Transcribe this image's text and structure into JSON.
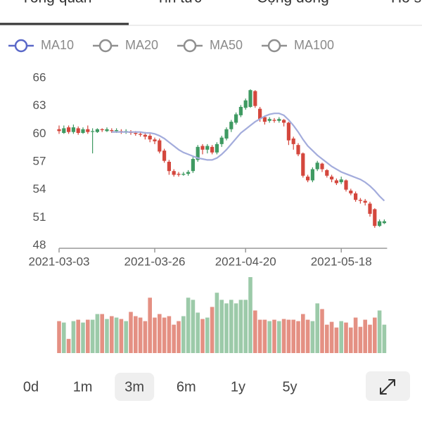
{
  "tabs": [
    "Tổng quan",
    "Tin tức",
    "Cộng đồng",
    "Hồ sơ"
  ],
  "ranges": [
    "0d",
    "1m",
    "3m",
    "6m",
    "1y",
    "5y"
  ],
  "selected_range": "3m",
  "chart_data": {
    "type": "candlestick",
    "legend": [
      {
        "name": "MA10",
        "color": "#5a68c8",
        "active": true
      },
      {
        "name": "MA20",
        "color": "#8f8f8f",
        "active": false
      },
      {
        "name": "MA50",
        "color": "#8f8f8f",
        "active": false
      },
      {
        "name": "MA100",
        "color": "#8f8f8f",
        "active": false
      }
    ],
    "categories": [
      "2021-03-03",
      null,
      null,
      null,
      null,
      null,
      null,
      null,
      null,
      null,
      null,
      null,
      null,
      null,
      null,
      null,
      null,
      null,
      null,
      null,
      "2021-03-26",
      null,
      null,
      null,
      null,
      null,
      null,
      null,
      null,
      null,
      null,
      null,
      null,
      null,
      null,
      null,
      null,
      null,
      null,
      "2021-04-20",
      null,
      null,
      null,
      null,
      null,
      null,
      null,
      null,
      null,
      null,
      null,
      null,
      null,
      null,
      null,
      null,
      null,
      null,
      null,
      "2021-05-18",
      null,
      null,
      null,
      null,
      null,
      null,
      null,
      null,
      null
    ],
    "open": [
      60.5,
      60.1,
      60.7,
      60.2,
      60.6,
      60.1,
      60.5,
      60.3,
      60.2,
      60.5,
      60.3,
      60.4,
      60.3,
      60.3,
      60.2,
      60.2,
      60.1,
      60.0,
      59.9,
      59.8,
      59.4,
      59.3,
      58.2,
      57.0,
      56.0,
      55.7,
      55.6,
      55.7,
      56.0,
      57.2,
      58.7,
      58.3,
      58.6,
      58.0,
      58.9,
      59.5,
      60.5,
      61.2,
      62.0,
      62.8,
      62.9,
      64.6,
      62.7,
      61.8,
      61.4,
      61.5,
      61.4,
      61.5,
      61.2,
      59.5,
      58.8,
      57.9,
      55.4,
      55.0,
      56.2,
      56.8,
      56.1,
      55.4,
      55.0,
      54.8,
      55.0,
      53.9,
      53.6,
      52.9,
      52.8,
      52.5,
      51.9,
      50.1,
      50.4
    ],
    "high": [
      60.9,
      60.9,
      60.9,
      61.0,
      60.8,
      60.7,
      60.9,
      60.6,
      60.6,
      60.6,
      60.7,
      60.6,
      60.6,
      60.5,
      60.5,
      60.4,
      60.3,
      60.2,
      60.2,
      60.0,
      59.6,
      59.5,
      58.4,
      57.2,
      56.2,
      55.9,
      55.9,
      56.1,
      57.5,
      58.8,
      58.9,
      58.9,
      58.8,
      59.1,
      59.8,
      60.7,
      61.5,
      62.3,
      63.1,
      63.8,
      64.8,
      64.7,
      62.9,
      61.9,
      61.8,
      61.7,
      61.8,
      61.6,
      61.3,
      59.7,
      59.0,
      58.0,
      55.6,
      56.4,
      57.1,
      56.9,
      56.2,
      55.6,
      55.2,
      55.4,
      55.1,
      54.1,
      53.8,
      53.1,
      53.0,
      52.7,
      52.0,
      50.8,
      50.8
    ],
    "low": [
      60.0,
      60.0,
      60.0,
      60.0,
      59.9,
      60.0,
      60.0,
      57.9,
      60.1,
      60.2,
      60.2,
      60.1,
      60.1,
      60.0,
      60.0,
      59.9,
      59.8,
      59.7,
      59.4,
      59.1,
      58.9,
      57.9,
      56.9,
      55.6,
      55.4,
      55.4,
      55.5,
      55.5,
      55.8,
      57.0,
      57.8,
      57.9,
      57.8,
      57.8,
      58.6,
      59.3,
      60.2,
      61.0,
      61.8,
      62.6,
      62.8,
      62.8,
      61.3,
      61.0,
      61.2,
      61.2,
      61.2,
      60.8,
      58.8,
      58.3,
      57.6,
      55.3,
      54.8,
      54.8,
      56.0,
      55.9,
      55.3,
      54.8,
      54.5,
      54.6,
      53.8,
      53.4,
      52.7,
      52.5,
      52.3,
      51.1,
      49.9,
      50.0,
      50.3
    ],
    "close": [
      60.3,
      60.6,
      60.2,
      60.7,
      60.1,
      60.5,
      60.2,
      60.3,
      60.5,
      60.4,
      60.5,
      60.3,
      60.4,
      60.2,
      60.3,
      60.1,
      60.0,
      59.9,
      59.7,
      59.4,
      59.2,
      58.1,
      57.1,
      56.0,
      55.6,
      55.6,
      55.7,
      55.9,
      57.3,
      58.6,
      58.3,
      58.7,
      58.0,
      58.9,
      59.6,
      60.5,
      61.3,
      62.1,
      62.9,
      63.6,
      64.7,
      63.0,
      61.6,
      61.3,
      61.6,
      61.4,
      61.6,
      61.2,
      59.3,
      58.9,
      57.8,
      55.5,
      55.0,
      56.2,
      56.9,
      56.2,
      55.5,
      55.1,
      54.7,
      55.1,
      54.0,
      53.6,
      52.9,
      52.8,
      52.6,
      51.4,
      50.1,
      50.6,
      50.6
    ],
    "ma10": [
      null,
      null,
      null,
      null,
      null,
      null,
      null,
      null,
      null,
      null,
      null,
      60.2,
      60.2,
      60.2,
      60.2,
      60.2,
      60.2,
      60.2,
      60.1,
      60.1,
      60.0,
      59.8,
      59.5,
      59.1,
      58.7,
      58.3,
      58.0,
      57.8,
      57.6,
      57.4,
      57.3,
      57.2,
      57.2,
      57.4,
      57.8,
      58.3,
      58.9,
      59.5,
      60.1,
      60.5,
      60.9,
      61.3,
      61.6,
      61.9,
      62.1,
      62.2,
      62.2,
      62.0,
      61.5,
      60.9,
      60.2,
      59.4,
      58.7,
      58.2,
      57.7,
      57.3,
      56.9,
      56.5,
      56.2,
      55.9,
      55.7,
      55.5,
      55.3,
      55.1,
      54.8,
      54.4,
      53.9,
      53.3,
      52.8
    ],
    "volume": [
      45,
      43,
      20,
      45,
      47,
      43,
      47,
      47,
      55,
      55,
      48,
      52,
      50,
      48,
      45,
      58,
      52,
      50,
      45,
      78,
      50,
      55,
      50,
      52,
      40,
      45,
      52,
      78,
      75,
      57,
      48,
      50,
      65,
      85,
      75,
      70,
      75,
      70,
      75,
      75,
      107,
      60,
      47,
      47,
      45,
      47,
      45,
      48,
      47,
      47,
      45,
      55,
      47,
      45,
      70,
      62,
      40,
      44,
      36,
      45,
      43,
      36,
      50,
      37,
      47,
      40,
      50,
      60,
      40
    ],
    "up_color": "#3f9a62",
    "down_color": "#d4473d",
    "volume_up_color": "#9ccaa9",
    "volume_down_color": "#e49083",
    "ma_color": "#a3acdc",
    "ylim": [
      48,
      66
    ],
    "yticks": [
      48,
      51,
      54,
      57,
      60,
      63,
      66
    ]
  }
}
